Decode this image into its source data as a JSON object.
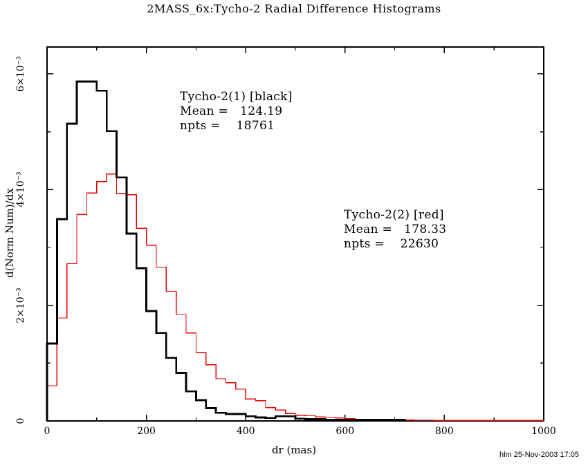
{
  "title": "2MASS_6x:Tycho-2 Radial Difference Histograms",
  "footer": {
    "credit": "hlm 25-Nov-2003 17:05"
  },
  "colors": {
    "background": "#ffffff",
    "frame": "#000000",
    "black_series": "#000000",
    "red_series": "#e60000"
  },
  "annotations": [
    {
      "lines": [
        "Tycho-2(1) [black]",
        "Mean =   124.19",
        "npts =    18761"
      ]
    },
    {
      "lines": [
        "Tycho-2(2) [red]",
        "Mean =   178.33",
        "npts =    22630"
      ]
    }
  ],
  "chart_data": {
    "type": "bar",
    "subtype": "step-histogram",
    "title": "2MASS_6x:Tycho-2 Radial Difference Histograms",
    "xlabel": "dr (mas)",
    "ylabel": "d(Norm Num)/dx",
    "xlim": [
      0,
      1000
    ],
    "ylim": [
      0,
      0.006466
    ],
    "grid": false,
    "legend": "inline text annotations",
    "x_major_ticks": [
      0,
      200,
      400,
      600,
      800,
      1000
    ],
    "x_tick_labels": [
      "0",
      "200",
      "400",
      "600",
      "800",
      "1000"
    ],
    "x_minor_ticks": [
      100,
      300,
      500,
      700,
      900
    ],
    "y_major_ticks": [
      0,
      0.002,
      0.004,
      0.006
    ],
    "y_tick_labels": [
      "0",
      "2×10⁻³",
      "4×10⁻³",
      "6×10⁻³"
    ],
    "y_minor_ticks": [
      0.001,
      0.003,
      0.005
    ],
    "bins_start_mas": 0,
    "bin_width_mas": 20,
    "value_units": "×10⁻³ per mas (normalized)",
    "series": [
      {
        "name": "Tycho-2(1)",
        "color_key": "black_series",
        "mean": 124.19,
        "npts": 18761,
        "values_e3": [
          1.34,
          3.49,
          5.14,
          5.87,
          5.87,
          5.71,
          5.01,
          4.21,
          3.24,
          2.64,
          1.9,
          1.52,
          1.09,
          0.83,
          0.51,
          0.36,
          0.22,
          0.14,
          0.12,
          0.12,
          0.08,
          0.06,
          0.05,
          0.08,
          0.08,
          0.04,
          0.03,
          0.03,
          0.02,
          0.02,
          0.02,
          0.02,
          0.02,
          0.02,
          0.02,
          0.02
        ]
      },
      {
        "name": "Tycho-2(2)",
        "color_key": "red_series",
        "mean": 178.33,
        "npts": 22630,
        "values_e3": [
          0.61,
          1.78,
          2.72,
          3.57,
          3.94,
          4.14,
          4.27,
          3.93,
          3.91,
          3.33,
          3.04,
          2.66,
          2.24,
          1.84,
          1.52,
          1.18,
          0.97,
          0.73,
          0.66,
          0.55,
          0.38,
          0.35,
          0.23,
          0.19,
          0.13,
          0.1,
          0.09,
          0.07,
          0.06,
          0.05,
          0.04,
          0.03,
          0.03,
          0.02,
          0.02,
          0.015,
          0.015,
          0.012,
          0.012,
          0.01,
          0.01,
          0.01,
          0.01,
          0.01,
          0.01,
          0.01,
          0.01,
          0.01,
          0.01,
          0.01
        ]
      }
    ]
  }
}
